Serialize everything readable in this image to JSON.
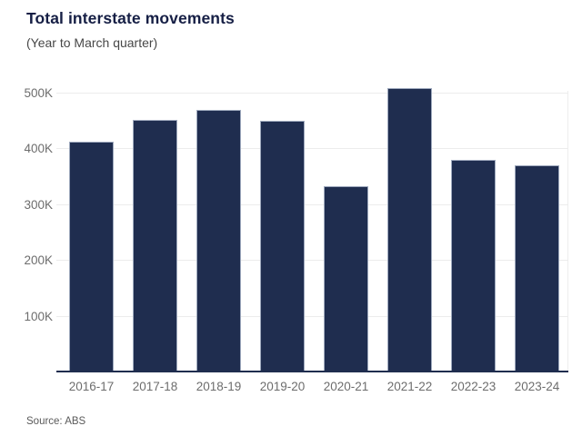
{
  "header": {
    "title": "Total interstate movements",
    "subtitle": "(Year to March quarter)"
  },
  "footer": {
    "source": "Source: ABS"
  },
  "chart_data": {
    "type": "bar",
    "title": "Total interstate movements",
    "subtitle": "(Year to March quarter)",
    "categories": [
      "2016-17",
      "2017-18",
      "2018-19",
      "2019-20",
      "2020-21",
      "2021-22",
      "2022-23",
      "2023-24"
    ],
    "values": [
      413000,
      453000,
      471000,
      451000,
      334000,
      510000,
      381000,
      371000
    ],
    "xlabel": "",
    "ylabel": "",
    "ylim": [
      0,
      500000
    ],
    "ytick_interval": 100000,
    "ytick_labels": [
      "100K",
      "200K",
      "300K",
      "400K",
      "500K"
    ],
    "grid": true,
    "legend_position": "none",
    "source": "Source: ABS",
    "colors": {
      "bar_fill": "#1f2d4f",
      "bar_border": "#9ea9bd",
      "gridline": "#ececec",
      "axis_line": "#1f2d4f",
      "title_text": "#161f45",
      "subtitle_text": "#474747",
      "tick_label_text": "#6d6d6d",
      "source_text": "#5a5a5a"
    }
  }
}
